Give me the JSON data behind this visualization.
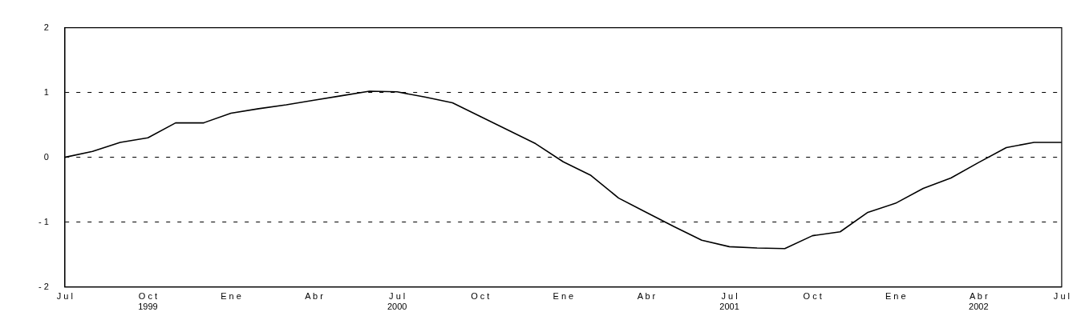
{
  "chart_data": {
    "type": "line",
    "x": [
      "1999-07",
      "1999-08",
      "1999-09",
      "1999-10",
      "1999-11",
      "1999-12",
      "2000-01",
      "2000-02",
      "2000-03",
      "2000-04",
      "2000-05",
      "2000-06",
      "2000-07",
      "2000-08",
      "2000-09",
      "2000-10",
      "2000-11",
      "2000-12",
      "2001-01",
      "2001-02",
      "2001-03",
      "2001-04",
      "2001-05",
      "2001-06",
      "2001-07",
      "2001-08",
      "2001-09",
      "2001-10",
      "2001-11",
      "2001-12",
      "2002-01",
      "2002-02",
      "2002-03",
      "2002-04",
      "2002-05",
      "2002-06",
      "2002-07"
    ],
    "series": [
      {
        "color": "#000000",
        "values": [
          0,
          0.09,
          0.23,
          0.3,
          0.53,
          0.53,
          0.68,
          0.75,
          0.81,
          0.88,
          0.95,
          1.02,
          1.01,
          0.93,
          0.84,
          0.63,
          0.42,
          0.21,
          -0.07,
          -0.28,
          -0.63,
          -0.85,
          -1.07,
          -1.28,
          -1.38,
          -1.4,
          -1.41,
          -1.21,
          -1.15,
          -0.85,
          -0.71,
          -0.48,
          -0.32,
          -0.08,
          0.15,
          0.23,
          0.23
        ]
      }
    ],
    "xlim": [
      "1999-07",
      "2002-07"
    ],
    "xticks": [
      {
        "value": "1999-07",
        "label": "J u l"
      },
      {
        "value": "1999-10",
        "label": "O c t\n1999"
      },
      {
        "value": "2000-01",
        "label": "E n e"
      },
      {
        "value": "2000-04",
        "label": "A b r"
      },
      {
        "value": "2000-07",
        "label": "J u l\n2000"
      },
      {
        "value": "2000-10",
        "label": "O c t"
      },
      {
        "value": "2001-01",
        "label": "E n e"
      },
      {
        "value": "2001-04",
        "label": "A b r"
      },
      {
        "value": "2001-07",
        "label": "J u l\n2001"
      },
      {
        "value": "2001-10",
        "label": "O c t"
      },
      {
        "value": "2002-01",
        "label": "E n e"
      },
      {
        "value": "2002-04",
        "label": "A b r\n2002"
      },
      {
        "value": "2002-07",
        "label": "J u l"
      }
    ],
    "ylim": [
      -2,
      2
    ],
    "yticks": [
      {
        "value": -2,
        "label": "- 2"
      },
      {
        "value": -1,
        "label": "- 1"
      },
      0,
      1,
      2
    ],
    "grid": "y",
    "marker": "none",
    "line_style": "solid"
  }
}
